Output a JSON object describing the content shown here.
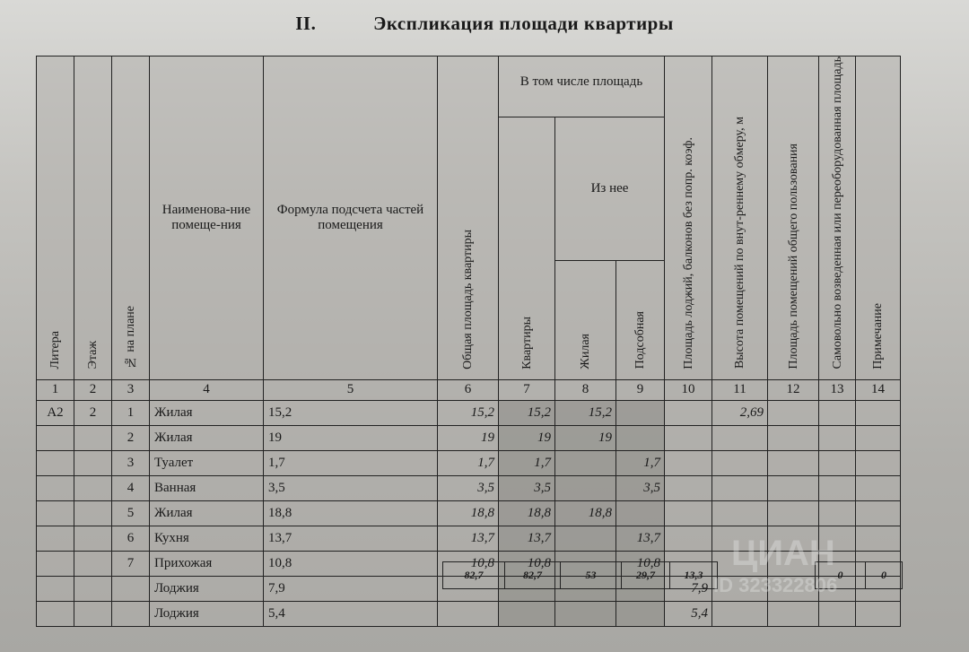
{
  "title": {
    "number": "II.",
    "text": "Экспликация площади квартиры"
  },
  "headers": {
    "litera": "Литера",
    "etazh": "Этаж",
    "no": "№ на плане",
    "name": "Наименова-ние помеще-ния",
    "formula": "Формула подсчета частей помещения",
    "total": "Общая площадь квартиры",
    "group": "В том числе площадь",
    "kvartiry": "Квартиры",
    "iz_nee": "Из нее",
    "zhilaya": "Жилая",
    "podsobnaya": "Подсобная",
    "lodzhii": "Площадь лоджий, балконов без попр. коэф.",
    "height": "Высота помещений по внут-реннему обмеру, м",
    "common": "Площадь помещений общего пользования",
    "samovol": "Самовольно возведенная или переоборудованная площадь",
    "note": "Примечание"
  },
  "column_numbers": [
    "1",
    "2",
    "3",
    "4",
    "5",
    "6",
    "7",
    "8",
    "9",
    "10",
    "11",
    "12",
    "13",
    "14"
  ],
  "rows": [
    {
      "litera": "А2",
      "etazh": "2",
      "no": "1",
      "name": "Жилая",
      "formula": "15,2",
      "total": "15,2",
      "kv": "15,2",
      "zh": "15,2",
      "pod": "",
      "lodz": "",
      "h": "2,69"
    },
    {
      "litera": "",
      "etazh": "",
      "no": "2",
      "name": "Жилая",
      "formula": "19",
      "total": "19",
      "kv": "19",
      "zh": "19",
      "pod": "",
      "lodz": "",
      "h": ""
    },
    {
      "litera": "",
      "etazh": "",
      "no": "3",
      "name": "Туалет",
      "formula": "1,7",
      "total": "1,7",
      "kv": "1,7",
      "zh": "",
      "pod": "1,7",
      "lodz": "",
      "h": ""
    },
    {
      "litera": "",
      "etazh": "",
      "no": "4",
      "name": "Ванная",
      "formula": "3,5",
      "total": "3,5",
      "kv": "3,5",
      "zh": "",
      "pod": "3,5",
      "lodz": "",
      "h": ""
    },
    {
      "litera": "",
      "etazh": "",
      "no": "5",
      "name": "Жилая",
      "formula": "18,8",
      "total": "18,8",
      "kv": "18,8",
      "zh": "18,8",
      "pod": "",
      "lodz": "",
      "h": ""
    },
    {
      "litera": "",
      "etazh": "",
      "no": "6",
      "name": "Кухня",
      "formula": "13,7",
      "total": "13,7",
      "kv": "13,7",
      "zh": "",
      "pod": "13,7",
      "lodz": "",
      "h": ""
    },
    {
      "litera": "",
      "etazh": "",
      "no": "7",
      "name": "Прихожая",
      "formula": "10,8",
      "total": "10,8",
      "kv": "10,8",
      "zh": "",
      "pod": "10,8",
      "lodz": "",
      "h": ""
    },
    {
      "litera": "",
      "etazh": "",
      "no": "",
      "name": "Лоджия",
      "formula": "7,9",
      "total": "",
      "kv": "",
      "zh": "",
      "pod": "",
      "lodz": "7,9",
      "h": ""
    },
    {
      "litera": "",
      "etazh": "",
      "no": "",
      "name": "Лоджия",
      "formula": "5,4",
      "total": "",
      "kv": "",
      "zh": "",
      "pod": "",
      "lodz": "5,4",
      "h": ""
    }
  ],
  "totals": {
    "total": "82,7",
    "kv": "82,7",
    "zh": "53",
    "pod": "29,7",
    "lodz": "13,3",
    "common": "0",
    "samovol": "0"
  },
  "watermark": {
    "brand": "ЦИАН",
    "id": "ID 323322806"
  }
}
